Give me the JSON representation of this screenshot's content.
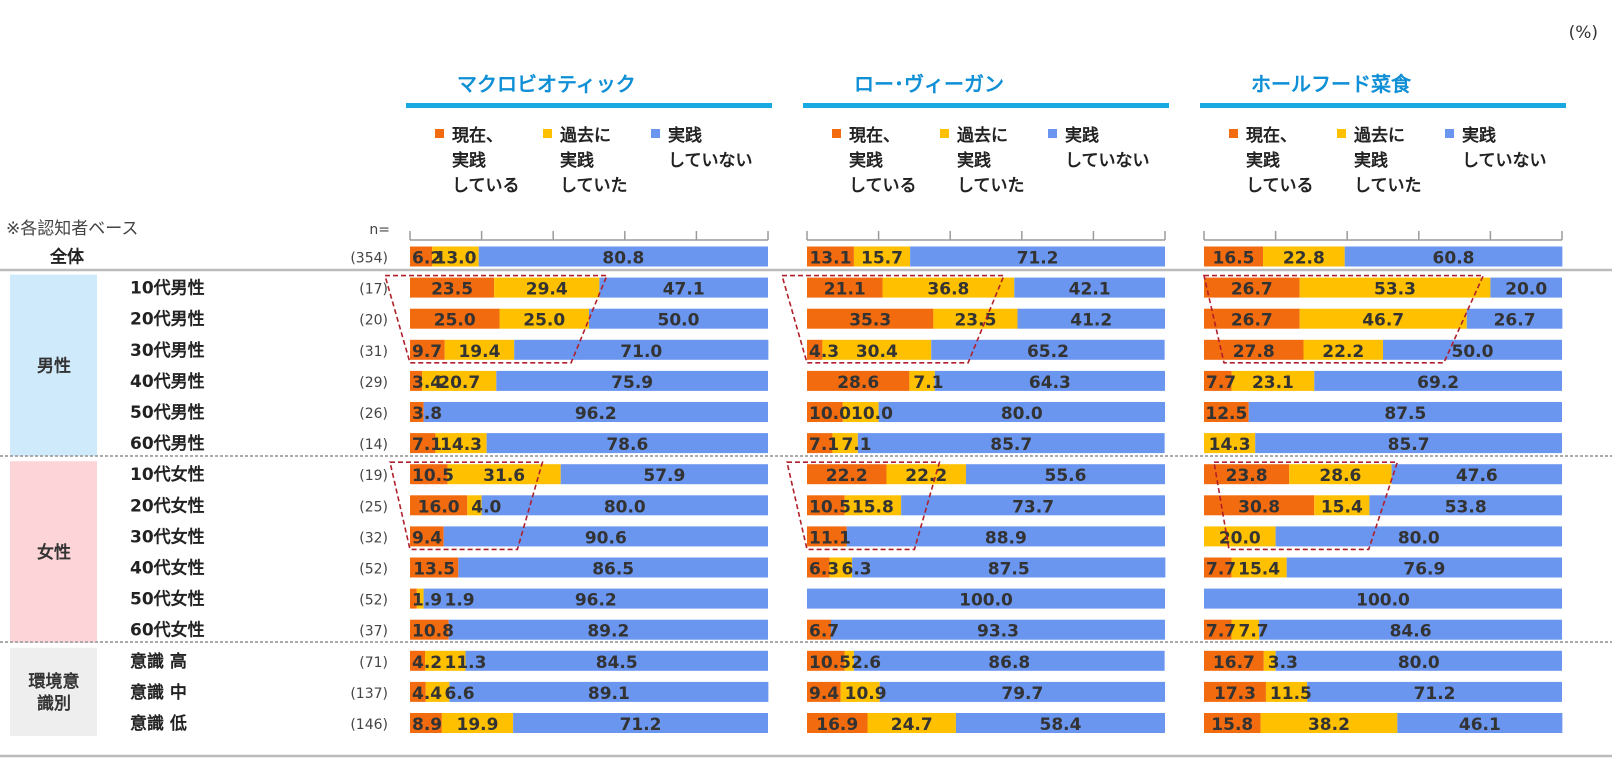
{
  "percent_unit": "(%)",
  "base_note": "※各認知者ベース",
  "n_label": "n=",
  "colors": {
    "current": "#F26B0F",
    "past": "#FFC000",
    "never": "#6A96F0",
    "header_line": "#17A9DF",
    "header_text": "#0F8FD5",
    "male_bg": "#CFEAFB",
    "female_bg": "#FDD4D7",
    "env_bg": "#EEEEEE",
    "highlight": "#B0202A"
  },
  "chart_data": {
    "type": "bar",
    "orientation": "horizontal",
    "stacked": true,
    "title": "",
    "xlabel": "",
    "ylabel": "",
    "xlim": [
      0,
      100
    ],
    "legend": [
      "現在、\n実践\nしている",
      "過去に\n実践\nしていた",
      "実践\nしていない"
    ],
    "legend_placement": "top",
    "rows": [
      {
        "label": "全体",
        "n": "(354)",
        "group": "total"
      },
      {
        "label": "10代男性",
        "n": "(17)",
        "group": "male"
      },
      {
        "label": "20代男性",
        "n": "(20)",
        "group": "male"
      },
      {
        "label": "30代男性",
        "n": "(31)",
        "group": "male"
      },
      {
        "label": "40代男性",
        "n": "(29)",
        "group": "male"
      },
      {
        "label": "50代男性",
        "n": "(26)",
        "group": "male"
      },
      {
        "label": "60代男性",
        "n": "(14)",
        "group": "male"
      },
      {
        "label": "10代女性",
        "n": "(19)",
        "group": "female"
      },
      {
        "label": "20代女性",
        "n": "(25)",
        "group": "female"
      },
      {
        "label": "30代女性",
        "n": "(32)",
        "group": "female"
      },
      {
        "label": "40代女性",
        "n": "(52)",
        "group": "female"
      },
      {
        "label": "50代女性",
        "n": "(52)",
        "group": "female"
      },
      {
        "label": "60代女性",
        "n": "(37)",
        "group": "female"
      },
      {
        "label": "意識 高",
        "n": "(71)",
        "group": "env"
      },
      {
        "label": "意識 中",
        "n": "(137)",
        "group": "env"
      },
      {
        "label": "意識 低",
        "n": "(146)",
        "group": "env"
      }
    ],
    "group_labels": {
      "male": "男性",
      "female": "女性",
      "env": "環境意\n識別"
    },
    "panels": [
      {
        "title": "マクロビオティック",
        "current": [
          6.2,
          23.5,
          25.0,
          9.7,
          3.4,
          3.8,
          7.1,
          10.5,
          16.0,
          9.4,
          13.5,
          1.9,
          10.8,
          4.2,
          4.4,
          8.9
        ],
        "past": [
          13.0,
          29.4,
          25.0,
          19.4,
          20.7,
          0,
          14.3,
          31.6,
          4.0,
          0,
          0,
          1.9,
          0,
          11.3,
          6.6,
          19.9
        ],
        "never": [
          80.8,
          47.1,
          50.0,
          71.0,
          75.9,
          96.2,
          78.6,
          57.9,
          80.0,
          90.6,
          86.5,
          96.2,
          89.2,
          84.5,
          89.1,
          71.2
        ],
        "labels_current": [
          "6.2",
          "23.5",
          "25.0",
          "9.7",
          "3.4",
          "3.8",
          "7.1",
          "10.5",
          "16.0",
          "9.4",
          "13.5",
          "1.9",
          "10.8",
          "4.2",
          "4.4",
          "8.9"
        ],
        "labels_past": [
          "13.0",
          "29.4",
          "25.0",
          "19.4",
          "20.7",
          "",
          "14.3",
          "31.6",
          "4.0",
          "",
          "",
          "1.9",
          "",
          "11.3",
          "6.6",
          "19.9"
        ],
        "labels_never": [
          "80.8",
          "47.1",
          "50.0",
          "71.0",
          "75.9",
          "96.2",
          "78.6",
          "57.9",
          "80.0",
          "90.6",
          "86.5",
          "96.2",
          "89.2",
          "84.5",
          "89.1",
          "71.2"
        ],
        "highlights": [
          {
            "from_row": 1,
            "to_row": 3
          },
          {
            "from_row": 7,
            "to_row": 9
          }
        ]
      },
      {
        "title": "ロー･ヴィーガン",
        "current": [
          13.1,
          21.1,
          35.3,
          4.3,
          28.6,
          10.0,
          7.1,
          22.2,
          10.5,
          11.1,
          6.3,
          0,
          6.7,
          10.5,
          9.4,
          16.9
        ],
        "past": [
          15.7,
          36.8,
          23.5,
          30.4,
          7.1,
          10.0,
          7.1,
          22.2,
          15.8,
          0,
          6.3,
          0,
          0,
          2.6,
          10.9,
          24.7
        ],
        "never": [
          71.2,
          42.1,
          41.2,
          65.2,
          64.3,
          80.0,
          85.7,
          55.6,
          73.7,
          88.9,
          87.5,
          100.0,
          93.3,
          86.8,
          79.7,
          58.4
        ],
        "labels_current": [
          "13.1",
          "21.1",
          "35.3",
          "4.3",
          "28.6",
          "10.0",
          "7.1",
          "22.2",
          "10.5",
          "11.1",
          "6.3",
          "",
          "6.7",
          "10.5",
          "9.4",
          "16.9"
        ],
        "labels_past": [
          "15.7",
          "36.8",
          "23.5",
          "30.4",
          "7.1",
          "10.0",
          "7.1",
          "22.2",
          "15.8",
          "",
          "6.3",
          "",
          "",
          "2.6",
          "10.9",
          "24.7"
        ],
        "labels_never": [
          "71.2",
          "42.1",
          "41.2",
          "65.2",
          "64.3",
          "80.0",
          "85.7",
          "55.6",
          "73.7",
          "88.9",
          "87.5",
          "100.0",
          "93.3",
          "86.8",
          "79.7",
          "58.4"
        ],
        "highlights": [
          {
            "from_row": 1,
            "to_row": 3
          },
          {
            "from_row": 7,
            "to_row": 9
          }
        ]
      },
      {
        "title": "ホールフード菜食",
        "current": [
          16.5,
          26.7,
          26.7,
          27.8,
          7.7,
          12.5,
          0,
          23.8,
          30.8,
          0,
          7.7,
          0,
          7.7,
          16.7,
          17.3,
          15.8
        ],
        "past": [
          22.8,
          53.3,
          46.7,
          22.2,
          23.1,
          0,
          14.3,
          28.6,
          15.4,
          20.0,
          15.4,
          0,
          7.7,
          3.3,
          11.5,
          38.2
        ],
        "never": [
          60.8,
          20.0,
          26.7,
          50.0,
          69.2,
          87.5,
          85.7,
          47.6,
          53.8,
          80.0,
          76.9,
          100.0,
          84.6,
          80.0,
          71.2,
          46.1
        ],
        "labels_current": [
          "16.5",
          "26.7",
          "26.7",
          "27.8",
          "7.7",
          "12.5",
          "",
          "23.8",
          "30.8",
          "",
          "7.7",
          "",
          "7.7",
          "16.7",
          "17.3",
          "15.8"
        ],
        "labels_past": [
          "22.8",
          "53.3",
          "46.7",
          "22.2",
          "23.1",
          "",
          "14.3",
          "28.6",
          "15.4",
          "20.0",
          "15.4",
          "",
          "7.7",
          "3.3",
          "11.5",
          "38.2"
        ],
        "labels_never": [
          "60.8",
          "20.0",
          "26.7",
          "50.0",
          "69.2",
          "87.5",
          "85.7",
          "47.6",
          "53.8",
          "80.0",
          "76.9",
          "100.0",
          "84.6",
          "80.0",
          "71.2",
          "46.1"
        ],
        "highlights": [
          {
            "from_row": 1,
            "to_row": 3
          },
          {
            "from_row": 7,
            "to_row": 9
          }
        ]
      }
    ]
  }
}
